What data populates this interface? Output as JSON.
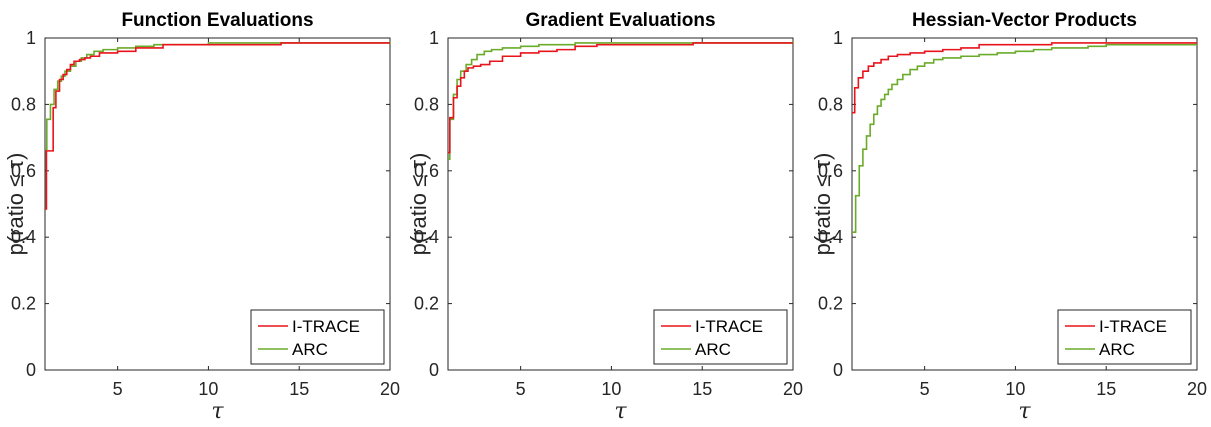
{
  "chart_data": [
    {
      "type": "line",
      "step": true,
      "title": "Function Evaluations",
      "xlabel": "τ",
      "ylabel": "p(ratio ≤ τ)",
      "xlim": [
        1,
        20
      ],
      "ylim": [
        0,
        1
      ],
      "xticks": [
        "5",
        "10",
        "15",
        "20"
      ],
      "yticks": [
        "0",
        "0.2",
        "0.4",
        "0.6",
        "0.8",
        "1"
      ],
      "legend_position": "bottom-right",
      "series": [
        {
          "name": "I-TRACE",
          "color": "#e8141b",
          "x": [
            1,
            1.08,
            1.45,
            1.6,
            1.8,
            2.0,
            2.2,
            2.4,
            2.6,
            2.9,
            3.2,
            3.5,
            4,
            5,
            6,
            7.5,
            14,
            20
          ],
          "y": [
            0.485,
            0.66,
            0.79,
            0.84,
            0.875,
            0.89,
            0.905,
            0.92,
            0.93,
            0.935,
            0.94,
            0.945,
            0.955,
            0.96,
            0.97,
            0.98,
            0.985,
            0.985
          ]
        },
        {
          "name": "ARC",
          "color": "#6aab2a",
          "x": [
            1,
            1.1,
            1.3,
            1.5,
            1.7,
            1.9,
            2.1,
            2.4,
            2.7,
            3,
            3.3,
            3.7,
            4.2,
            5,
            6,
            7,
            10,
            20
          ],
          "y": [
            0.665,
            0.755,
            0.8,
            0.845,
            0.87,
            0.885,
            0.9,
            0.915,
            0.93,
            0.94,
            0.95,
            0.96,
            0.965,
            0.97,
            0.975,
            0.98,
            0.985,
            0.99
          ]
        }
      ]
    },
    {
      "type": "line",
      "step": true,
      "title": "Gradient Evaluations",
      "xlabel": "τ",
      "ylabel": "p(ratio ≤ τ)",
      "xlim": [
        1,
        20
      ],
      "ylim": [
        0,
        1
      ],
      "xticks": [
        "5",
        "10",
        "15",
        "20"
      ],
      "yticks": [
        "0",
        "0.2",
        "0.4",
        "0.6",
        "0.8",
        "1"
      ],
      "legend_position": "bottom-right",
      "series": [
        {
          "name": "I-TRACE",
          "color": "#e8141b",
          "x": [
            1,
            1.1,
            1.3,
            1.5,
            1.7,
            1.9,
            2.1,
            2.4,
            2.8,
            3.3,
            4,
            5,
            6,
            7,
            8,
            9.2,
            14.5,
            20
          ],
          "y": [
            0.655,
            0.76,
            0.82,
            0.855,
            0.88,
            0.9,
            0.91,
            0.915,
            0.92,
            0.93,
            0.945,
            0.955,
            0.96,
            0.965,
            0.975,
            0.98,
            0.985,
            0.985
          ]
        },
        {
          "name": "ARC",
          "color": "#6aab2a",
          "x": [
            1,
            1.1,
            1.3,
            1.5,
            1.7,
            2,
            2.3,
            2.6,
            3,
            3.4,
            4,
            5,
            6,
            8,
            20
          ],
          "y": [
            0.635,
            0.755,
            0.83,
            0.875,
            0.9,
            0.92,
            0.935,
            0.95,
            0.96,
            0.965,
            0.97,
            0.975,
            0.98,
            0.985,
            0.99
          ]
        }
      ]
    },
    {
      "type": "line",
      "step": true,
      "title": "Hessian-Vector Products",
      "xlabel": "τ",
      "ylabel": "p(ratio ≤ τ)",
      "xlim": [
        1,
        20
      ],
      "ylim": [
        0,
        1
      ],
      "xticks": [
        "5",
        "10",
        "15",
        "20"
      ],
      "yticks": [
        "0",
        "0.2",
        "0.4",
        "0.6",
        "0.8",
        "1"
      ],
      "legend_position": "bottom-right",
      "series": [
        {
          "name": "I-TRACE",
          "color": "#e8141b",
          "x": [
            1,
            1.15,
            1.35,
            1.6,
            1.9,
            2.2,
            2.6,
            3,
            3.5,
            4.2,
            5,
            6,
            7,
            8,
            12,
            17,
            20
          ],
          "y": [
            0.775,
            0.85,
            0.88,
            0.9,
            0.915,
            0.925,
            0.935,
            0.945,
            0.95,
            0.955,
            0.96,
            0.965,
            0.97,
            0.98,
            0.985,
            0.985,
            0.985
          ]
        },
        {
          "name": "ARC",
          "color": "#6aab2a",
          "x": [
            1,
            1.2,
            1.4,
            1.6,
            1.8,
            2.0,
            2.2,
            2.4,
            2.6,
            2.8,
            3.0,
            3.2,
            3.5,
            3.8,
            4.2,
            4.6,
            5,
            5.5,
            6,
            7,
            8,
            9,
            10,
            11,
            12,
            14,
            15,
            20
          ],
          "y": [
            0.415,
            0.525,
            0.615,
            0.665,
            0.705,
            0.74,
            0.77,
            0.795,
            0.815,
            0.83,
            0.845,
            0.86,
            0.875,
            0.89,
            0.905,
            0.915,
            0.925,
            0.935,
            0.94,
            0.945,
            0.95,
            0.955,
            0.96,
            0.965,
            0.97,
            0.975,
            0.98,
            0.98
          ]
        }
      ]
    }
  ]
}
